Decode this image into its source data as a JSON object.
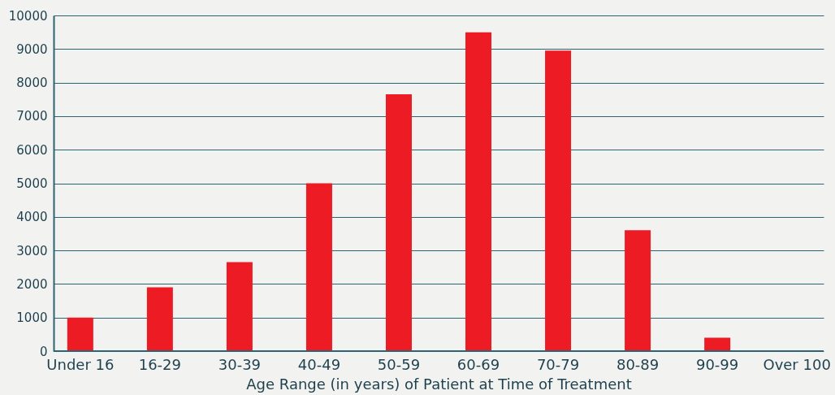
{
  "chart_data": {
    "type": "bar",
    "xlabel": "Age Range (in years) of Patient at Time of Treatment",
    "categories": [
      "Under 16",
      "16-29",
      "30-39",
      "40-49",
      "50-59",
      "60-69",
      "70-79",
      "80-89",
      "90-99",
      "Over 100"
    ],
    "values": [
      1000,
      1900,
      2650,
      5000,
      7650,
      9500,
      8950,
      3600,
      400,
      0
    ],
    "color": "#ed1c24",
    "ylim": [
      0,
      10000
    ],
    "yticks": [
      0,
      1000,
      2000,
      3000,
      4000,
      5000,
      6000,
      7000,
      8000,
      9000,
      10000
    ],
    "grid": "y"
  }
}
